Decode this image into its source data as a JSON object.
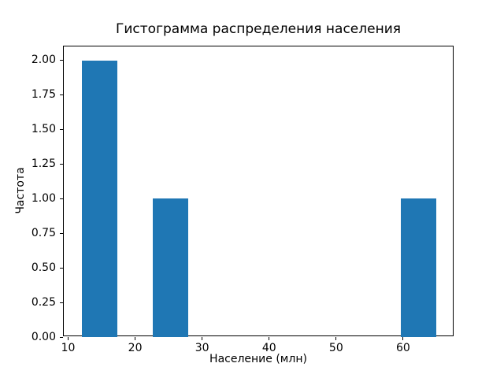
{
  "chart_data": {
    "type": "bar",
    "subtype": "histogram",
    "title": "Гистограмма распределения населения",
    "xlabel": "Население (млн)",
    "ylabel": "Частота",
    "bar_color": "#1f77b4",
    "bins": [
      {
        "x0": 12.0,
        "x1": 17.3,
        "count": 2
      },
      {
        "x0": 22.6,
        "x1": 27.9,
        "count": 1
      },
      {
        "x0": 59.7,
        "x1": 65.0,
        "count": 1
      }
    ],
    "xlim": [
      9.35,
      67.65
    ],
    "ylim": [
      0,
      2.1
    ],
    "xticks": [
      10,
      20,
      30,
      40,
      50,
      60
    ],
    "xtick_labels": [
      "10",
      "20",
      "30",
      "40",
      "50",
      "60"
    ],
    "yticks": [
      0.0,
      0.25,
      0.5,
      0.75,
      1.0,
      1.25,
      1.5,
      1.75,
      2.0
    ],
    "ytick_labels": [
      "0.00",
      "0.25",
      "0.50",
      "0.75",
      "1.00",
      "1.25",
      "1.50",
      "1.75",
      "2.00"
    ],
    "legend": null,
    "grid": false
  }
}
